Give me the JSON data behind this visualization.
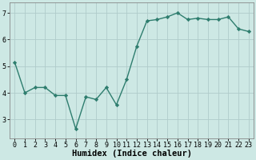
{
  "x": [
    0,
    1,
    2,
    3,
    4,
    5,
    6,
    7,
    8,
    9,
    10,
    11,
    12,
    13,
    14,
    15,
    16,
    17,
    18,
    19,
    20,
    21,
    22,
    23
  ],
  "y": [
    5.15,
    4.0,
    4.2,
    4.2,
    3.9,
    3.9,
    2.65,
    3.85,
    3.75,
    4.2,
    3.55,
    4.5,
    5.75,
    6.7,
    6.75,
    6.85,
    7.0,
    6.75,
    6.8,
    6.75,
    6.75,
    6.85,
    6.4,
    6.3
  ],
  "line_color": "#2e7d6e",
  "marker": "D",
  "markersize": 2.2,
  "linewidth": 1.0,
  "bg_color": "#cde8e4",
  "grid_color": "#b0ccca",
  "xlabel": "Humidex (Indice chaleur)",
  "xlabel_fontsize": 7.5,
  "yticks": [
    3,
    4,
    5,
    6,
    7
  ],
  "xtick_labels": [
    "0",
    "1",
    "2",
    "3",
    "4",
    "5",
    "6",
    "7",
    "8",
    "9",
    "10",
    "11",
    "12",
    "13",
    "14",
    "15",
    "16",
    "17",
    "18",
    "19",
    "20",
    "21",
    "22",
    "23"
  ],
  "ylim": [
    2.3,
    7.4
  ],
  "xlim": [
    -0.5,
    23.5
  ],
  "tick_fontsize": 6.0,
  "spine_color": "#888888"
}
